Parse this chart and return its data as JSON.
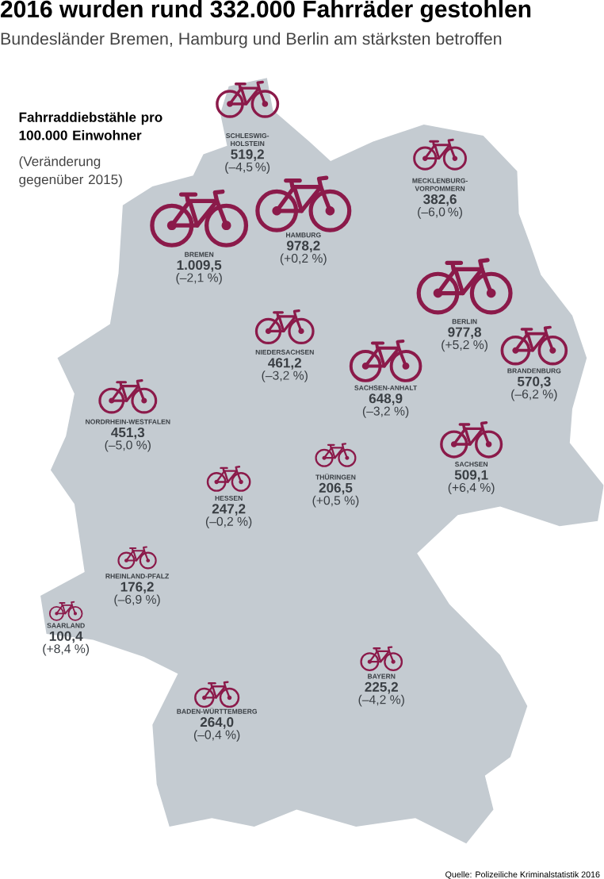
{
  "chart_data": {
    "type": "other",
    "title": "2016 wurden rund 332.000 Fahrräder gestohlen",
    "subtitle": "Bundesländer Bremen, Hamburg und Berlin am stärksten betroffen",
    "categories": [
      "SCHLESWIG-HOLSTEIN",
      "MECKLENBURG-VORPOMMERN",
      "HAMBURG",
      "BREMEN",
      "BERLIN",
      "BRANDENBURG",
      "NIEDERSACHSEN",
      "SACHSEN-ANHALT",
      "NORDRHEIN-WESTFALEN",
      "SACHSEN",
      "THÜRINGEN",
      "HESSEN",
      "RHEINLAND-PFALZ",
      "SAARLAND",
      "BAYERN",
      "BADEN-WÜRTTEMBERG"
    ],
    "series": [
      {
        "color": "#8b1a4a",
        "values": [
          519.2,
          382.6,
          978.2,
          1009.5,
          977.8,
          570.3,
          461.2,
          648.9,
          451.3,
          509.1,
          206.5,
          247.2,
          176.2,
          100.4,
          225.2,
          264.0
        ],
        "value_labels": [
          "519,2",
          "382,6",
          "978,2",
          "1.009,5",
          "977,8",
          "570,3",
          "461,2",
          "648,9",
          "451,3",
          "509,1",
          "206,5",
          "247,2",
          "176,2",
          "100,4",
          "225,2",
          "264,0"
        ]
      },
      {
        "values": [
          -4.5,
          -6.0,
          0.2,
          -2.1,
          5.2,
          -6.2,
          -3.2,
          -3.2,
          -5.0,
          6.4,
          0.5,
          -0.2,
          -6.9,
          8.4,
          -4.2,
          -0.4
        ],
        "value_labels": [
          "(–4,5 %)",
          "(–6,0 %)",
          "(+0,2 %)",
          "(–2,1 %)",
          "(+5,2 %)",
          "(–6,2 %)",
          "(–3,2 %)",
          "(–3,2 %)",
          "(–5,0 %)",
          "(+6,4 %)",
          "(+0,5 %)",
          "(–0,2 %)",
          "(–6,9 %)",
          "(+8,4 %)",
          "(–4,2 %)",
          "(–0,4 %)"
        ]
      }
    ],
    "annotations": [
      "Fahrraddiebstähle pro 100.000 Einwohner",
      "(Veränderung gegenüber 2015)",
      "Quelle: Polizeiliche Kriminalstatistik 2016"
    ]
  }
}
